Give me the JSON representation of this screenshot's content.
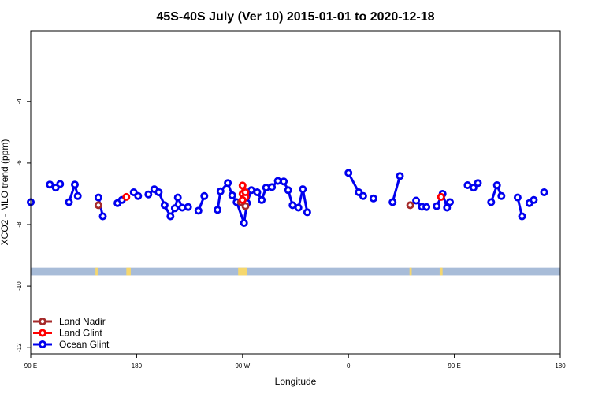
{
  "chart_data": {
    "type": "line",
    "title": "45S-40S July (Ver 10)   2015-01-01 to 2020-12-18",
    "xlabel": "Longitude",
    "ylabel": "XCO2 - MLO trend (ppm)",
    "xlim": [
      -180,
      180
    ],
    "ylim": [
      -12.2,
      -1.7
    ],
    "x_ticks": [
      {
        "value": -180,
        "label": "90 E"
      },
      {
        "value": -108,
        "label": "180"
      },
      {
        "value": -36,
        "label": "90 W"
      },
      {
        "value": 36,
        "label": "0"
      },
      {
        "value": 108,
        "label": "90 E"
      },
      {
        "value": 180,
        "label": "180"
      }
    ],
    "y_ticks": [
      -12,
      -10,
      -8,
      -6,
      -4
    ],
    "land_band": {
      "y_range": [
        -9.65,
        -9.4
      ],
      "ocean_color": "#a8bcd8",
      "land_color": "#f5d76e",
      "land_segments": [
        [
          -136,
          -134.5
        ],
        [
          -115,
          -112
        ],
        [
          -39,
          -33
        ],
        [
          77.5,
          79
        ],
        [
          98,
          100
        ]
      ]
    },
    "legend_position": "bottom-left",
    "series": [
      {
        "name": "Land Nadir",
        "color": "#a52a2a",
        "segments": [
          [
            [
              -134,
              -7.37
            ]
          ],
          [
            [
              -37,
              -7.27
            ],
            [
              -34,
              -7.4
            ]
          ],
          [
            [
              78,
              -7.37
            ]
          ]
        ]
      },
      {
        "name": "Land Glint",
        "color": "#ff0000",
        "segments": [
          [
            [
              -115,
              -7.1
            ]
          ],
          [
            [
              -36,
              -6.73
            ],
            [
              -36,
              -7.0
            ],
            [
              -34,
              -7.1
            ],
            [
              -36,
              -7.2
            ],
            [
              -34,
              -6.95
            ]
          ],
          [
            [
              99,
              -7.1
            ]
          ]
        ]
      },
      {
        "name": "Ocean Glint",
        "color": "#0000ee",
        "segments": [
          [
            [
              -180,
              -7.27
            ]
          ],
          [
            [
              -167,
              -6.7
            ],
            [
              -163,
              -6.8
            ],
            [
              -160,
              -6.68
            ]
          ],
          [
            [
              -154,
              -7.27
            ],
            [
              -150,
              -6.7
            ],
            [
              -148,
              -7.07
            ]
          ],
          [
            [
              -134,
              -7.12
            ],
            [
              -131,
              -7.73
            ]
          ],
          [
            [
              -121,
              -7.3
            ],
            [
              -118,
              -7.2
            ]
          ],
          [
            [
              -110,
              -6.95
            ],
            [
              -107,
              -7.07
            ]
          ],
          [
            [
              -100,
              -7.02
            ],
            [
              -96,
              -6.85
            ],
            [
              -93,
              -6.95
            ],
            [
              -89,
              -7.37
            ],
            [
              -85,
              -7.73
            ],
            [
              -82,
              -7.47
            ],
            [
              -80,
              -7.12
            ],
            [
              -77,
              -7.45
            ],
            [
              -73,
              -7.43
            ]
          ],
          [
            [
              -66,
              -7.55
            ],
            [
              -62,
              -7.07
            ]
          ],
          [
            [
              -53,
              -7.52
            ],
            [
              -51,
              -6.92
            ],
            [
              -46,
              -6.65
            ],
            [
              -43,
              -7.05
            ],
            [
              -40,
              -7.27
            ],
            [
              -35,
              -7.95
            ],
            [
              -33,
              -7.3
            ],
            [
              -30,
              -6.88
            ],
            [
              -26,
              -6.95
            ],
            [
              -23,
              -7.2
            ],
            [
              -20,
              -6.8
            ],
            [
              -16,
              -6.78
            ],
            [
              -12,
              -6.58
            ],
            [
              -8,
              -6.6
            ],
            [
              -5,
              -6.88
            ],
            [
              -2,
              -7.37
            ],
            [
              2,
              -7.45
            ],
            [
              5,
              -6.85
            ],
            [
              8,
              -7.6
            ]
          ],
          [
            [
              36,
              -6.32
            ],
            [
              43,
              -6.95
            ],
            [
              46,
              -7.07
            ]
          ],
          [
            [
              53,
              -7.15
            ]
          ],
          [
            [
              66,
              -7.27
            ],
            [
              71,
              -6.42
            ]
          ],
          [
            [
              82,
              -7.22
            ],
            [
              86,
              -7.42
            ],
            [
              89,
              -7.43
            ]
          ],
          [
            [
              96,
              -7.4
            ],
            [
              100,
              -7.0
            ],
            [
              103,
              -7.45
            ],
            [
              105,
              -7.27
            ]
          ],
          [
            [
              117,
              -6.72
            ],
            [
              121,
              -6.8
            ],
            [
              124,
              -6.65
            ]
          ],
          [
            [
              133,
              -7.27
            ],
            [
              137,
              -6.72
            ],
            [
              140,
              -7.07
            ]
          ],
          [
            [
              151,
              -7.12
            ],
            [
              154,
              -7.73
            ]
          ],
          [
            [
              159,
              -7.3
            ],
            [
              162,
              -7.2
            ]
          ],
          [
            [
              169,
              -6.95
            ]
          ]
        ]
      }
    ]
  }
}
